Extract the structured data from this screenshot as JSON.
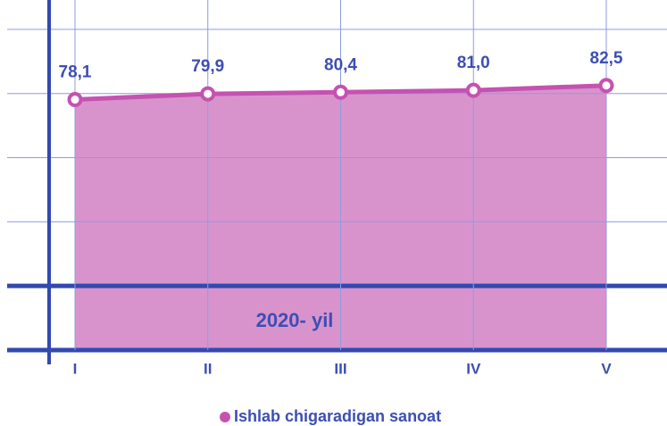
{
  "chart_data": {
    "type": "area",
    "categories": [
      "I",
      "II",
      "III",
      "IV",
      "V"
    ],
    "series": [
      {
        "name": "Ishlab chigaradigan sanoat",
        "color": "#c552b1",
        "fill": "#d993cc",
        "values": [
          78.1,
          79.9,
          80.4,
          81.0,
          82.5
        ],
        "value_labels": [
          "78,1",
          "79,9",
          "80,4",
          "81,0",
          "82,5"
        ]
      }
    ],
    "annotation": "2020- yil",
    "ylim": [
      0,
      110
    ],
    "yticks": [
      0,
      20,
      40,
      60,
      80,
      100
    ],
    "grid": true,
    "legend": "bottom"
  }
}
